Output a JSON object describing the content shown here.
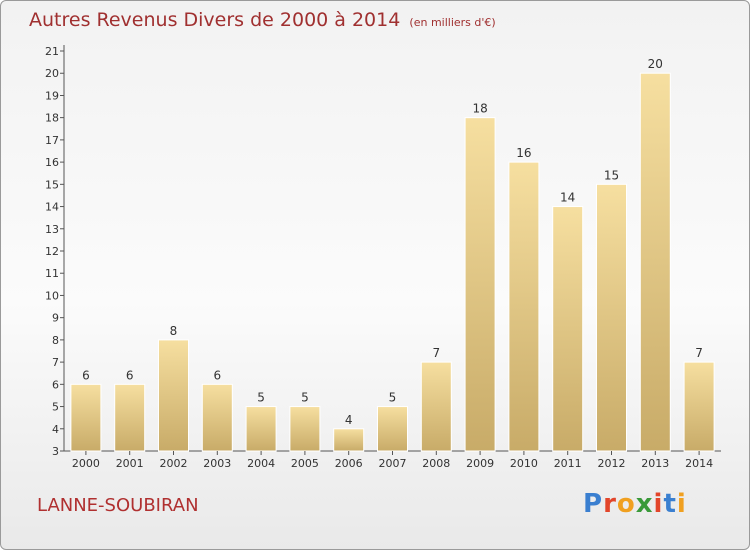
{
  "header": {
    "title": "Autres Revenus Divers de 2000 à 2014",
    "unit": "(en milliers d'€)"
  },
  "footer": {
    "location": "LANNE-SOUBIRAN",
    "logo": [
      "P",
      "r",
      "o",
      "x",
      "i",
      "t",
      "i"
    ]
  },
  "colors": {
    "title": "#a03030",
    "bar_light": "#f6dfa0",
    "bar_dark": "#c8ab68",
    "logo": [
      "#3a7fd0",
      "#e2452a",
      "#f0a020",
      "#3a9a3a",
      "#e2452a",
      "#3a7fd0",
      "#f0a020"
    ]
  },
  "chart_data": {
    "type": "bar",
    "categories": [
      "2000",
      "2001",
      "2002",
      "2003",
      "2004",
      "2005",
      "2006",
      "2007",
      "2008",
      "2009",
      "2010",
      "2011",
      "2012",
      "2013",
      "2014"
    ],
    "values": [
      6,
      6,
      8,
      6,
      5,
      5,
      4,
      5,
      7,
      18,
      16,
      14,
      15,
      20,
      7
    ],
    "ylim": [
      3,
      21
    ],
    "yticks": [
      3,
      4,
      5,
      6,
      7,
      8,
      9,
      10,
      11,
      12,
      13,
      14,
      15,
      16,
      17,
      18,
      19,
      20,
      21
    ],
    "grid": false,
    "xlabel": "",
    "ylabel": ""
  }
}
